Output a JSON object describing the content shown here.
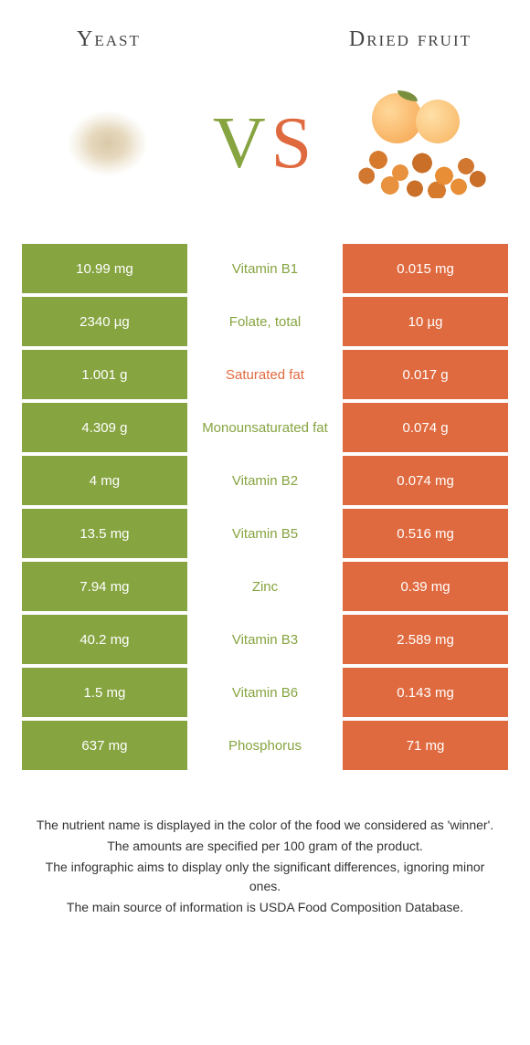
{
  "colors": {
    "green": "#86a440",
    "orange": "#e06a3f",
    "nutrient_green": "#86a440",
    "nutrient_orange": "#e06a3f"
  },
  "foods": {
    "left": {
      "title": "Yeast"
    },
    "right": {
      "title": "Dried fruit"
    }
  },
  "vs": {
    "v": "V",
    "s": "S"
  },
  "rows": [
    {
      "left": "10.99 mg",
      "nutrient": "Vitamin B1",
      "right": "0.015 mg",
      "winner": "left"
    },
    {
      "left": "2340 µg",
      "nutrient": "Folate, total",
      "right": "10 µg",
      "winner": "left"
    },
    {
      "left": "1.001 g",
      "nutrient": "Saturated fat",
      "right": "0.017 g",
      "winner": "right"
    },
    {
      "left": "4.309 g",
      "nutrient": "Monounsaturated fat",
      "right": "0.074 g",
      "winner": "left"
    },
    {
      "left": "4 mg",
      "nutrient": "Vitamin B2",
      "right": "0.074 mg",
      "winner": "left"
    },
    {
      "left": "13.5 mg",
      "nutrient": "Vitamin B5",
      "right": "0.516 mg",
      "winner": "left"
    },
    {
      "left": "7.94 mg",
      "nutrient": "Zinc",
      "right": "0.39 mg",
      "winner": "left"
    },
    {
      "left": "40.2 mg",
      "nutrient": "Vitamin B3",
      "right": "2.589 mg",
      "winner": "left"
    },
    {
      "left": "1.5 mg",
      "nutrient": "Vitamin B6",
      "right": "0.143 mg",
      "winner": "left"
    },
    {
      "left": "637 mg",
      "nutrient": "Phosphorus",
      "right": "71 mg",
      "winner": "left"
    }
  ],
  "footer": [
    "The nutrient name is displayed in the color of the food we considered as 'winner'.",
    "The amounts are specified per 100 gram of the product.",
    "The infographic aims to display only the significant differences, ignoring minor ones.",
    "The main source of information is USDA Food Composition Database."
  ]
}
